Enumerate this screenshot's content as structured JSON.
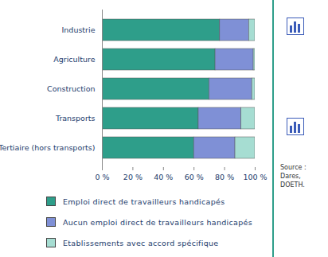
{
  "chart_data": {
    "type": "bar",
    "orientation": "horizontal",
    "stacked": true,
    "categories": [
      "Industrie",
      "Agriculture",
      "Construction",
      "Transports",
      "Tertiaire (hors transports)"
    ],
    "series": [
      {
        "name": "Emploi direct de travailleurs handicapés",
        "color": "#2e9e8a",
        "values": [
          77,
          74,
          70,
          63,
          60
        ]
      },
      {
        "name": "Aucun emploi direct de travailleurs handicapés",
        "color": "#7f90d6",
        "values": [
          19,
          25,
          28,
          28,
          27
        ]
      },
      {
        "name": "Etablissements avec accord spécifique",
        "color": "#a6ddd2",
        "values": [
          4,
          1,
          2,
          9,
          13
        ]
      }
    ],
    "xlim": [
      0,
      100
    ],
    "xticks": [
      {
        "value": 0,
        "label": "0 %"
      },
      {
        "value": 20,
        "label": "20 %"
      },
      {
        "value": 40,
        "label": "40 %"
      },
      {
        "value": 60,
        "label": "60 %"
      },
      {
        "value": 80,
        "label": "80 %"
      },
      {
        "value": 100,
        "label": "100 %"
      }
    ],
    "grid": false,
    "legend": "bottom",
    "source": "Source : Dares, DOETH."
  }
}
